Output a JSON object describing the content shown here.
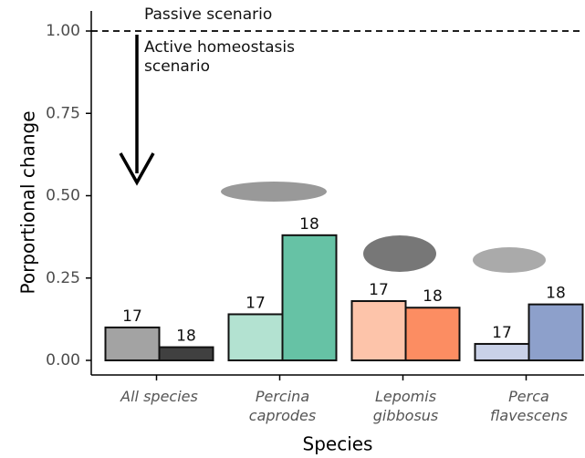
{
  "chart_data": {
    "type": "bar",
    "annotations": [
      "Passive scenario",
      "Active homeostasis scenario"
    ],
    "ylabel": "Porportional change",
    "xlabel": "Species",
    "categories": [
      "All species",
      "Percina caprodes",
      "Lepomis gibbosus",
      "Perca flavescens"
    ],
    "series": [
      {
        "name": "17",
        "colors": [
          "#a3a3a3",
          "#b3e2d1",
          "#fdc4aa",
          "#c9d1e8"
        ],
        "values": [
          0.1,
          0.14,
          0.18,
          0.05
        ]
      },
      {
        "name": "18",
        "colors": [
          "#404040",
          "#66c2a5",
          "#fc8d62",
          "#8da0cb"
        ],
        "values": [
          0.04,
          0.38,
          0.16,
          0.17
        ]
      }
    ],
    "reference_line": 1,
    "ylim": [
      0,
      1
    ],
    "yticks": [
      {
        "value": 0,
        "label": "0.00"
      },
      {
        "value": 0.25,
        "label": "0.25"
      },
      {
        "value": 0.5,
        "label": "0.50"
      },
      {
        "value": 0.75,
        "label": "0.75"
      },
      {
        "value": 1,
        "label": "1.00"
      }
    ]
  }
}
